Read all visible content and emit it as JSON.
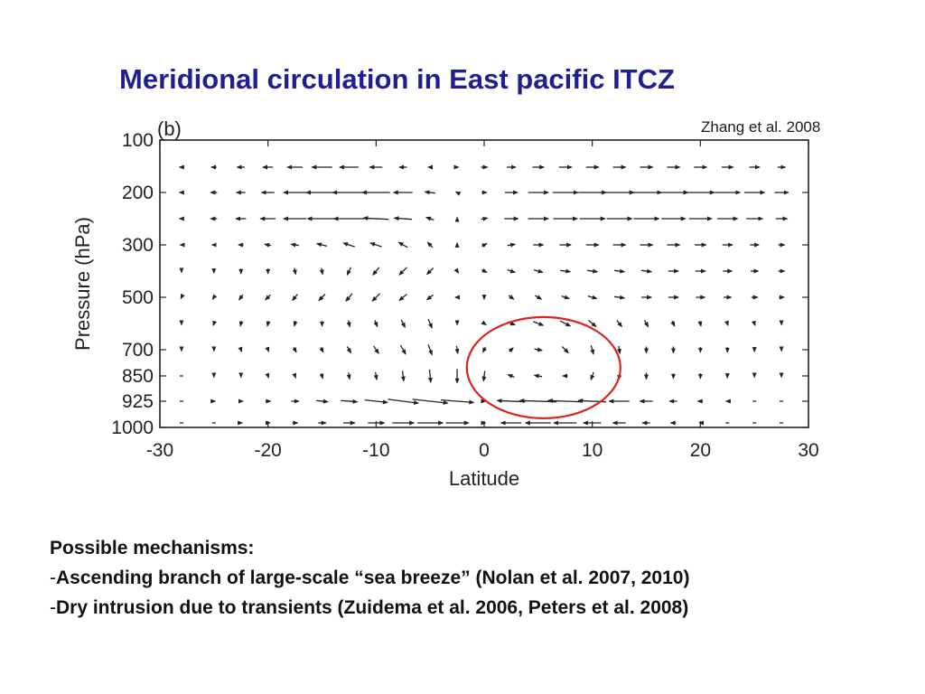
{
  "slide": {
    "title": "Meridional circulation in East pacific ITCZ",
    "citation": "Zhang et al. 2008"
  },
  "chart_data": {
    "type": "vector-field",
    "panel_label": "(b)",
    "xlabel": "Latitude",
    "ylabel": "Pressure (hPa)",
    "xlim": [
      -30,
      30
    ],
    "x_ticks": [
      -30,
      -20,
      -10,
      0,
      10,
      20,
      30
    ],
    "y_ticks": [
      100,
      200,
      300,
      500,
      700,
      850,
      925,
      1000
    ],
    "y_axis": "pressure levels, top to bottom",
    "grid": false,
    "legend": "none",
    "annotation": {
      "shape": "ellipse",
      "color": "#dd2222",
      "center": [
        5.5,
        720
      ]
    },
    "vector_rows": [
      {
        "level": 100,
        "x": [
          -28,
          -25,
          -22.5,
          -20,
          -17.5,
          -15,
          -12.5,
          -10,
          -7.5,
          -5,
          -2.5,
          0,
          2.5,
          5,
          7.5,
          10,
          12.5,
          15,
          17.5,
          20,
          22.5,
          25,
          27.5
        ],
        "u": [
          -0.3,
          -0.4,
          -0.6,
          -0.8,
          -1.2,
          -1.6,
          -1.5,
          -1.0,
          -0.6,
          -0.3,
          0.2,
          0.5,
          0.7,
          0.9,
          1.0,
          1.0,
          1.0,
          1.0,
          1.0,
          1.0,
          0.9,
          0.8,
          0.6
        ],
        "v": [
          0,
          0,
          0,
          0,
          0,
          0,
          0,
          0,
          0,
          0,
          0,
          0,
          0,
          0,
          0,
          0,
          0,
          0,
          0,
          0,
          0,
          0,
          0
        ]
      },
      {
        "level": 200,
        "x": [
          -28,
          -25,
          -22.5,
          -20,
          -17.5,
          -15,
          -12.5,
          -10,
          -7.5,
          -5,
          -2.5,
          0,
          2.5,
          5,
          7.5,
          10,
          12.5,
          15,
          17.5,
          20,
          22.5,
          25,
          27.5
        ],
        "u": [
          -0.3,
          -0.5,
          -0.7,
          -1.0,
          -1.8,
          -2.5,
          -2.6,
          -2.2,
          -1.5,
          -0.8,
          -0.2,
          0.4,
          1.0,
          1.6,
          2.0,
          2.2,
          2.3,
          2.4,
          2.3,
          2.2,
          2.0,
          1.6,
          1.1
        ],
        "v": [
          0,
          0,
          0,
          0,
          0,
          0,
          0,
          0,
          0,
          0.1,
          0.1,
          0,
          0,
          0,
          0,
          0,
          0,
          0,
          0,
          0,
          0,
          0,
          0
        ]
      },
      {
        "level": 250,
        "x": [
          -28,
          -25,
          -22.5,
          -20,
          -17.5,
          -15,
          -12.5,
          -10,
          -7.5,
          -5,
          -2.5,
          0,
          2.5,
          5,
          7.5,
          10,
          12.5,
          15,
          17.5,
          20,
          22.5,
          25,
          27.5
        ],
        "u": [
          -0.3,
          -0.5,
          -0.8,
          -1.2,
          -1.8,
          -2.3,
          -2.4,
          -2.0,
          -1.4,
          -0.6,
          0.0,
          0.5,
          1.1,
          1.6,
          1.9,
          2.0,
          2.0,
          2.0,
          1.9,
          1.8,
          1.6,
          1.3,
          0.9
        ],
        "v": [
          0,
          0,
          0,
          0,
          0,
          0,
          0,
          0.1,
          0.1,
          0.2,
          0.2,
          0.1,
          0,
          0,
          0,
          0,
          0,
          0,
          0,
          0,
          0,
          0,
          0
        ]
      },
      {
        "level": 300,
        "x": [
          -28,
          -25,
          -22.5,
          -20,
          -17.5,
          -15,
          -12.5,
          -10,
          -7.5,
          -5,
          -2.5,
          0,
          2.5,
          5,
          7.5,
          10,
          12.5,
          15,
          17.5,
          20,
          22.5,
          25,
          27.5
        ],
        "u": [
          -0.2,
          -0.3,
          -0.4,
          -0.5,
          -0.6,
          -0.8,
          -0.9,
          -0.9,
          -0.7,
          -0.4,
          0.0,
          0.4,
          0.6,
          0.8,
          0.9,
          1.0,
          1.0,
          1.0,
          1.0,
          0.9,
          0.8,
          0.7,
          0.5
        ],
        "v": [
          0,
          0,
          0,
          0.1,
          0.1,
          0.2,
          0.3,
          0.3,
          0.4,
          0.4,
          0.3,
          0.2,
          0.1,
          0,
          0,
          0,
          0,
          0,
          0,
          0,
          0,
          0,
          0
        ]
      },
      {
        "level": 400,
        "x": [
          -28,
          -25,
          -22.5,
          -20,
          -17.5,
          -15,
          -12.5,
          -10,
          -7.5,
          -5,
          -2.5,
          0,
          2.5,
          5,
          7.5,
          10,
          12.5,
          15,
          17.5,
          20,
          22.5,
          25,
          27.5
        ],
        "u": [
          0.0,
          0.0,
          0.0,
          0.0,
          0.1,
          0.1,
          -0.3,
          -0.5,
          -0.6,
          -0.5,
          0.2,
          0.4,
          0.6,
          0.7,
          0.8,
          0.8,
          0.8,
          0.8,
          0.8,
          0.8,
          0.7,
          0.6,
          0.5
        ],
        "v": [
          -0.2,
          -0.3,
          -0.4,
          -0.4,
          -0.5,
          -0.5,
          -0.6,
          -0.6,
          -0.6,
          -0.5,
          -0.3,
          -0.2,
          -0.2,
          -0.2,
          -0.1,
          -0.1,
          -0.1,
          -0.1,
          0,
          0,
          0,
          0,
          0
        ]
      },
      {
        "level": 500,
        "x": [
          -28,
          -25,
          -22.5,
          -20,
          -17.5,
          -15,
          -12.5,
          -10,
          -7.5,
          -5,
          -2.5,
          0,
          2.5,
          5,
          7.5,
          10,
          12.5,
          15,
          17.5,
          20,
          22.5,
          25,
          27.5
        ],
        "u": [
          -0.1,
          -0.2,
          -0.3,
          -0.4,
          -0.4,
          -0.5,
          -0.5,
          -0.6,
          -0.6,
          -0.5,
          -0.3,
          0.0,
          0.4,
          0.5,
          0.6,
          0.7,
          0.8,
          0.8,
          0.8,
          0.7,
          0.6,
          0.5,
          0.4
        ],
        "v": [
          -0.2,
          -0.3,
          -0.4,
          -0.4,
          -0.5,
          -0.5,
          -0.6,
          -0.6,
          -0.5,
          -0.4,
          0.0,
          -0.3,
          -0.3,
          -0.3,
          -0.2,
          -0.2,
          -0.1,
          0,
          0,
          0,
          0,
          0,
          0
        ]
      },
      {
        "level": 600,
        "x": [
          -28,
          -25,
          -22.5,
          -20,
          -17.5,
          -15,
          -12.5,
          -10,
          -7.5,
          -5,
          -2.5,
          0,
          2.5,
          5,
          7.5,
          10,
          12.5,
          15,
          17.5,
          20,
          22.5,
          25,
          27.5
        ],
        "u": [
          0.0,
          -0.1,
          -0.1,
          -0.1,
          -0.1,
          0.0,
          0.1,
          0.2,
          0.3,
          0.3,
          0.0,
          0.3,
          0.6,
          0.8,
          0.8,
          0.6,
          0.4,
          0.3,
          0.2,
          0.1,
          0.1,
          0.1,
          0.0
        ],
        "v": [
          -0.2,
          -0.3,
          -0.4,
          -0.4,
          -0.4,
          -0.4,
          -0.5,
          -0.5,
          -0.6,
          -0.7,
          -0.2,
          -0.2,
          -0.2,
          -0.3,
          -0.4,
          -0.5,
          -0.5,
          -0.5,
          -0.4,
          -0.4,
          -0.3,
          -0.3,
          -0.2
        ]
      },
      {
        "level": 700,
        "x": [
          -28,
          -25,
          -22.5,
          -20,
          -17.5,
          -15,
          -12.5,
          -10,
          -7.5,
          -5,
          -2.5,
          0,
          2.5,
          5,
          7.5,
          10,
          12.5,
          15,
          17.5,
          20,
          22.5,
          25,
          27.5
        ],
        "u": [
          0.0,
          0.0,
          0.1,
          0.1,
          0.2,
          0.2,
          0.3,
          0.4,
          0.4,
          0.3,
          0.1,
          -0.2,
          0.3,
          0.6,
          0.5,
          0.2,
          0.1,
          0.0,
          0.0,
          0.0,
          0.0,
          0.0,
          0.0
        ],
        "v": [
          -0.2,
          -0.2,
          -0.3,
          -0.3,
          -0.4,
          -0.4,
          -0.5,
          -0.6,
          -0.7,
          -0.8,
          -0.6,
          -0.4,
          0.3,
          -0.1,
          -0.5,
          -0.7,
          -0.6,
          -0.5,
          -0.5,
          -0.4,
          -0.4,
          -0.3,
          -0.2
        ]
      },
      {
        "level": 850,
        "x": [
          -28,
          -25,
          -22.5,
          -20,
          -17.5,
          -15,
          -12.5,
          -10,
          -7.5,
          -5,
          -2.5,
          0,
          2.5,
          5,
          7.5,
          10,
          12.5,
          15,
          17.5,
          20,
          22.5,
          25,
          27.5
        ],
        "u": [
          0.0,
          0.0,
          0.0,
          0.1,
          0.1,
          0.1,
          0.1,
          0.1,
          0.1,
          0.1,
          0.0,
          -0.1,
          -0.5,
          -0.6,
          -0.4,
          -0.2,
          -0.1,
          0.0,
          0.0,
          0.0,
          0.0,
          0.0,
          0.0
        ],
        "v": [
          -0.1,
          -0.2,
          -0.2,
          -0.3,
          -0.3,
          -0.4,
          -0.5,
          -0.6,
          -0.8,
          -1.0,
          -1.1,
          -0.8,
          0.2,
          0.1,
          0.0,
          -0.6,
          -0.6,
          -0.5,
          -0.4,
          -0.4,
          -0.3,
          -0.2,
          -0.2
        ]
      },
      {
        "level": 925,
        "x": [
          -28,
          -25,
          -22.5,
          -20,
          -17.5,
          -15,
          -12.5,
          -10,
          -7.5,
          -5,
          -2.5,
          0,
          2.5,
          5,
          7.5,
          10,
          12.5,
          15,
          17.5,
          20,
          22.5,
          25,
          27.5
        ],
        "u": [
          0.1,
          0.2,
          0.3,
          0.4,
          0.6,
          0.9,
          1.3,
          1.8,
          2.4,
          2.8,
          2.6,
          0.2,
          -2.2,
          -2.9,
          -2.7,
          -2.2,
          -1.6,
          -1.0,
          -0.6,
          -0.4,
          -0.2,
          -0.1,
          -0.1
        ],
        "v": [
          0,
          0,
          0,
          0,
          0,
          -0.1,
          -0.1,
          -0.2,
          -0.3,
          -0.3,
          -0.2,
          0,
          0.1,
          0.1,
          0.1,
          0.1,
          0,
          0,
          0,
          0,
          0,
          0,
          0
        ]
      },
      {
        "level": 1000,
        "x": [
          -28,
          -25,
          -22.5,
          -20,
          -17.5,
          -15,
          -12.5,
          -10,
          -7.5,
          -5,
          -2.5,
          0,
          2.5,
          5,
          7.5,
          10,
          12.5,
          15,
          17.5,
          20,
          22.5,
          25,
          27.5
        ],
        "u": [
          0.1,
          0.1,
          0.2,
          0.3,
          0.4,
          0.6,
          0.9,
          1.3,
          1.7,
          2.0,
          1.8,
          0.2,
          -1.6,
          -2.0,
          -1.8,
          -1.4,
          -1.0,
          -0.6,
          -0.4,
          -0.2,
          -0.1,
          -0.1,
          0.0
        ],
        "v": [
          0,
          0,
          0,
          0,
          0,
          0,
          0,
          0,
          0,
          0,
          0,
          0,
          0,
          0,
          0,
          0,
          0,
          0,
          0,
          0,
          0,
          0,
          0
        ]
      }
    ]
  },
  "mechanisms": {
    "heading": "Possible mechanisms:",
    "items": [
      {
        "dash": "-",
        "text": "Ascending branch of large-scale “sea breeze” (Nolan et al. 2007, 2010)"
      },
      {
        "dash": "-",
        "text": "Dry intrusion due to transients (Zuidema et al. 2006, Peters et al. 2008)"
      }
    ]
  }
}
